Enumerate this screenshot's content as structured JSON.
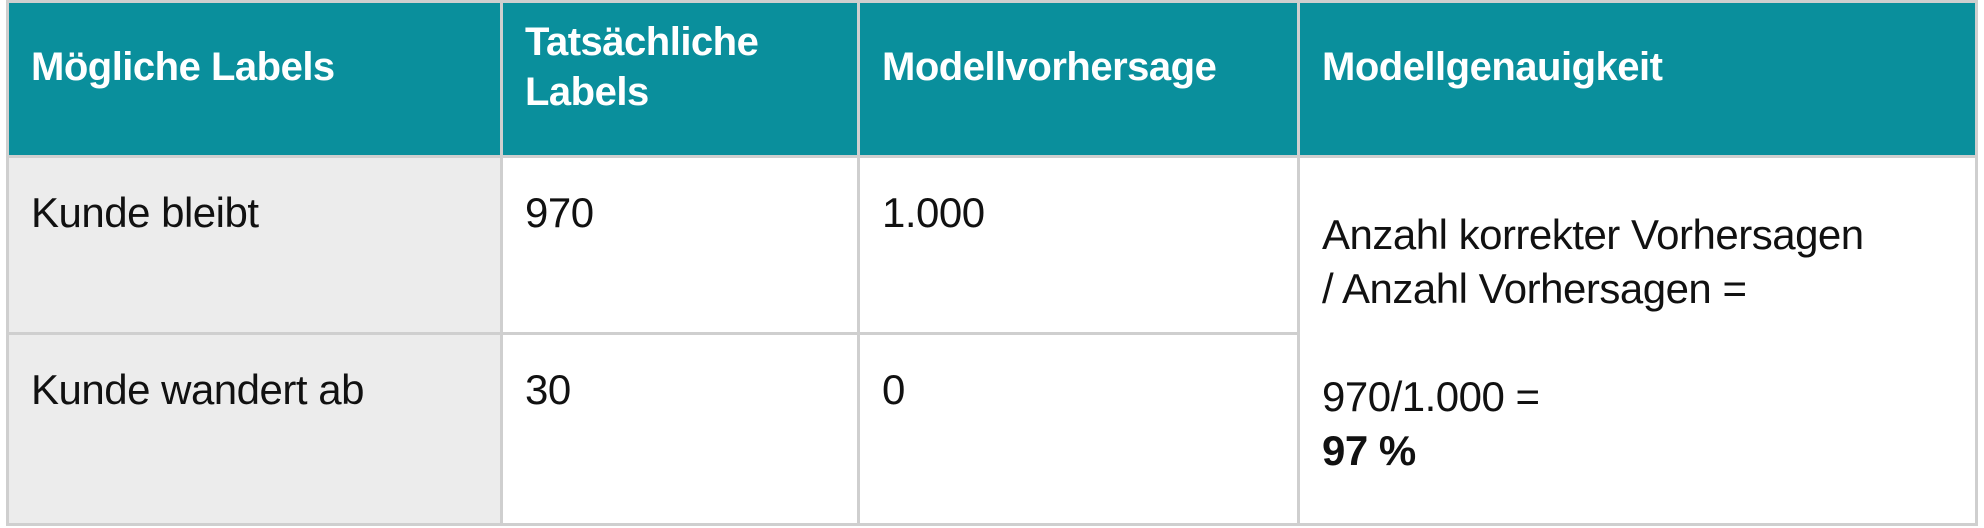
{
  "table": {
    "headers": [
      "Mögliche Labels",
      "Tatsächliche Labels",
      "Modellvorhersage",
      "Modellgenauigkeit"
    ],
    "rows": [
      {
        "label": "Kunde bleibt",
        "actual": "970",
        "predicted": "1.000"
      },
      {
        "label": "Kunde wandert ab",
        "actual": "30",
        "predicted": "0"
      }
    ],
    "accuracy": {
      "formula_line1": "Anzahl korrekter Vorhersagen",
      "formula_line2": "/ Anzahl Vorhersagen =",
      "calculation": "970/1.000 =",
      "result": "97 %"
    }
  },
  "colors": {
    "header_bg": "#0a8f9c",
    "label_col_bg": "#ececec",
    "border": "#cfcfcf"
  }
}
